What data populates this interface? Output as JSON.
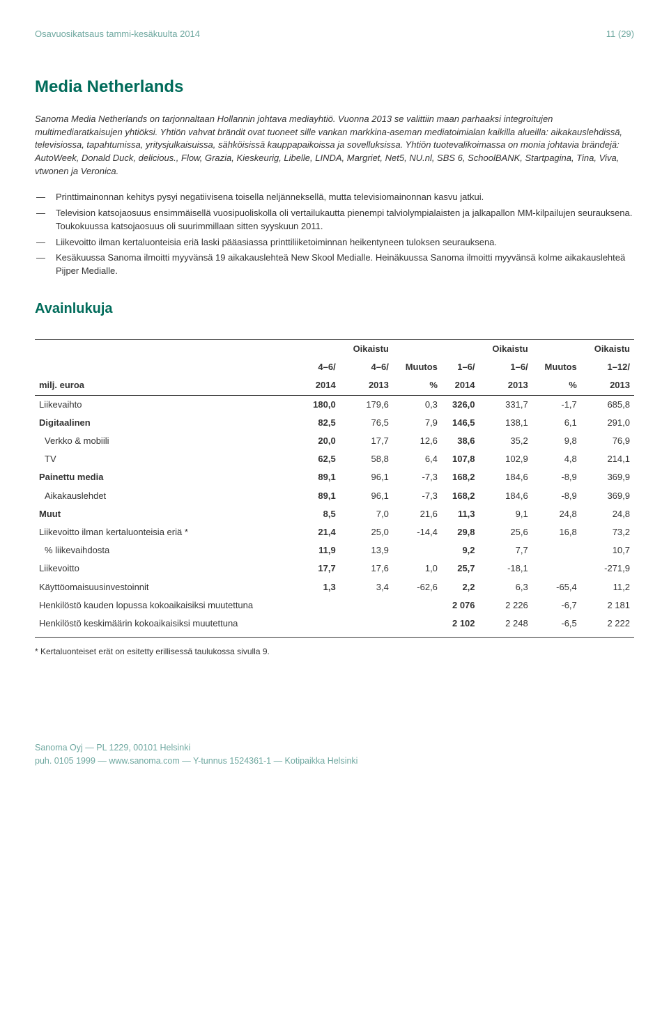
{
  "header": {
    "left": "Osavuosikatsaus tammi-kesäkuulta 2014",
    "right": "11 (29)"
  },
  "title": "Media Netherlands",
  "intro": "Sanoma Media Netherlands on tarjonnaltaan Hollannin johtava mediayhtiö. Vuonna 2013 se valittiin maan parhaaksi integroitujen multimediaratkaisujen yhtiöksi. Yhtiön vahvat brändit ovat tuoneet sille vankan markkina-aseman mediatoimialan kaikilla alueilla: aikakauslehdissä, televisiossa, tapahtumissa, yritysjulkaisuissa, sähköisissä kauppapaikoissa ja sovelluksissa. Yhtiön tuotevalikoimassa on monia johtavia brändejä: AutoWeek, Donald Duck, delicious., Flow, Grazia, Kieskeurig, Libelle, LINDA, Margriet, Net5, NU.nl, SBS 6, SchoolBANK, Startpagina, Tina, Viva, vtwonen ja Veronica.",
  "bullets": [
    "Printtimainonnan kehitys pysyi negatiivisena toisella neljänneksellä, mutta televisiomainonnan kasvu jatkui.",
    "Television katsojaosuus ensimmäisellä vuosipuoliskolla oli vertailukautta pienempi talviolympialaisten ja jalkapallon MM-kilpailujen seurauksena. Toukokuussa katsojaosuus oli suurimmillaan sitten syyskuun 2011.",
    "Liikevoitto ilman kertaluonteisia eriä laski pääasiassa printtiliiketoiminnan heikentyneen tuloksen seurauksena.",
    "Kesäkuussa Sanoma ilmoitti myyvänsä 19 aikakauslehteä New Skool Medialle. Heinäkuussa Sanoma ilmoitti myyvänsä kolme aikakauslehteä Pijper Medialle."
  ],
  "section_title": "Avainlukuja",
  "table": {
    "head_row1": [
      "",
      "",
      "Oikaistu",
      "",
      "",
      "Oikaistu",
      "",
      "Oikaistu"
    ],
    "head_row2": [
      "",
      "4–6/",
      "4–6/",
      "Muutos",
      "1–6/",
      "1–6/",
      "Muutos",
      "1–12/"
    ],
    "head_row3": [
      "milj. euroa",
      "2014",
      "2013",
      "%",
      "2014",
      "2013",
      "%",
      "2013"
    ],
    "rows": [
      {
        "label": "Liikevaihto",
        "indent": 0,
        "bold_label": false,
        "cells": [
          "180,0",
          "179,6",
          "0,3",
          "326,0",
          "331,7",
          "-1,7",
          "685,8"
        ],
        "bold_cols": [
          0,
          3
        ]
      },
      {
        "label": "Digitaalinen",
        "indent": 0,
        "bold_label": true,
        "cells": [
          "82,5",
          "76,5",
          "7,9",
          "146,5",
          "138,1",
          "6,1",
          "291,0"
        ],
        "bold_cols": [
          0,
          3
        ]
      },
      {
        "label": "Verkko & mobiili",
        "indent": 1,
        "bold_label": false,
        "cells": [
          "20,0",
          "17,7",
          "12,6",
          "38,6",
          "35,2",
          "9,8",
          "76,9"
        ],
        "bold_cols": [
          0,
          3
        ]
      },
      {
        "label": "TV",
        "indent": 1,
        "bold_label": false,
        "cells": [
          "62,5",
          "58,8",
          "6,4",
          "107,8",
          "102,9",
          "4,8",
          "214,1"
        ],
        "bold_cols": [
          0,
          3
        ]
      },
      {
        "label": "Painettu media",
        "indent": 0,
        "bold_label": true,
        "cells": [
          "89,1",
          "96,1",
          "-7,3",
          "168,2",
          "184,6",
          "-8,9",
          "369,9"
        ],
        "bold_cols": [
          0,
          3
        ]
      },
      {
        "label": "Aikakauslehdet",
        "indent": 1,
        "bold_label": false,
        "cells": [
          "89,1",
          "96,1",
          "-7,3",
          "168,2",
          "184,6",
          "-8,9",
          "369,9"
        ],
        "bold_cols": [
          0,
          3
        ]
      },
      {
        "label": "Muut",
        "indent": 0,
        "bold_label": true,
        "cells": [
          "8,5",
          "7,0",
          "21,6",
          "11,3",
          "9,1",
          "24,8",
          "24,8"
        ],
        "bold_cols": [
          0,
          3
        ]
      },
      {
        "label": "Liikevoitto ilman kertaluonteisia eriä *",
        "indent": 0,
        "bold_label": false,
        "cells": [
          "21,4",
          "25,0",
          "-14,4",
          "29,8",
          "25,6",
          "16,8",
          "73,2"
        ],
        "bold_cols": [
          0,
          3
        ]
      },
      {
        "label": "% liikevaihdosta",
        "indent": 1,
        "bold_label": false,
        "cells": [
          "11,9",
          "13,9",
          "",
          "9,2",
          "7,7",
          "",
          "10,7"
        ],
        "bold_cols": [
          0,
          3
        ]
      },
      {
        "label": "Liikevoitto",
        "indent": 0,
        "bold_label": false,
        "cells": [
          "17,7",
          "17,6",
          "1,0",
          "25,7",
          "-18,1",
          "",
          "-271,9"
        ],
        "bold_cols": [
          0,
          3
        ]
      },
      {
        "label": "Käyttöomaisuusinvestoinnit",
        "indent": 0,
        "bold_label": false,
        "cells": [
          "1,3",
          "3,4",
          "-62,6",
          "2,2",
          "6,3",
          "-65,4",
          "11,2"
        ],
        "bold_cols": [
          0,
          3
        ]
      },
      {
        "label": "Henkilöstö kauden lopussa kokoaikaisiksi muutettuna",
        "indent": 0,
        "bold_label": false,
        "cells": [
          "",
          "",
          "",
          "2 076",
          "2 226",
          "-6,7",
          "2 181"
        ],
        "bold_cols": [
          3
        ]
      },
      {
        "label": "Henkilöstö keskimäärin kokoaikaisiksi muutettuna",
        "indent": 0,
        "bold_label": false,
        "cells": [
          "",
          "",
          "",
          "2 102",
          "2 248",
          "-6,5",
          "2 222"
        ],
        "bold_cols": [
          3
        ],
        "last": true
      }
    ]
  },
  "footnote": "* Kertaluonteiset erät on esitetty erillisessä taulukossa sivulla 9.",
  "footer": {
    "line1": "Sanoma Oyj — PL 1229, 00101 Helsinki",
    "line2": "puh. 0105 1999 — www.sanoma.com — Y-tunnus 1524361-1 — Kotipaikka Helsinki"
  }
}
